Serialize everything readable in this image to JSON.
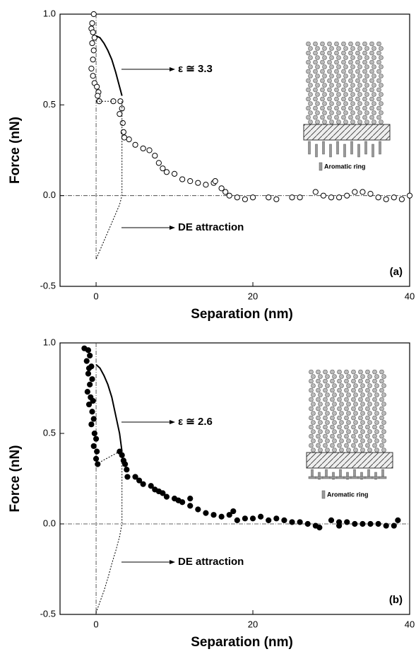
{
  "chart_data": [
    {
      "type": "scatter",
      "xlabel": "Separation (nm)",
      "ylabel": "Force (nN)",
      "xlim": [
        -4.6,
        40
      ],
      "xticks": [
        0,
        20,
        40
      ],
      "ylim": [
        -0.5,
        1.0
      ],
      "yticks": [
        -0.5,
        {
          "value": 0,
          "label": "0.0"
        },
        {
          "value": 0.5,
          "label": "0.5"
        },
        {
          "value": 1,
          "label": "1.0"
        }
      ],
      "annotations": [
        "ε ≅ 3.3",
        "DE attraction",
        "(a)",
        "Aromatic ring"
      ],
      "series": [
        {
          "marker": "open",
          "color": "#000000",
          "x": [
            -0.3,
            -0.5,
            -0.6,
            -0.4,
            -0.2,
            -0.5,
            -0.3,
            -0.4,
            -0.6,
            -0.4,
            -0.2,
            0.1,
            0.3,
            0.2,
            0.4,
            2.2,
            3.1,
            3.3,
            3.0,
            3.4,
            3.5,
            3.6,
            4.2,
            5.0,
            6.0,
            6.8,
            7.5,
            8.0,
            8.5,
            9.0,
            10.0,
            11.0,
            12.0,
            13.0,
            14.0,
            15.0,
            15.2,
            16.0,
            16.5,
            17.0,
            18.0,
            19.0,
            20.0,
            22.0,
            23.0,
            25.0,
            26.0,
            28.0,
            29.0,
            30.0,
            31.0,
            32.0,
            33.0,
            34.0,
            35.0,
            36.0,
            37.0,
            38.0,
            39.0,
            40.0
          ],
          "values": [
            1.0,
            0.95,
            0.92,
            0.9,
            0.87,
            0.84,
            0.8,
            0.75,
            0.7,
            0.66,
            0.62,
            0.6,
            0.57,
            0.55,
            0.52,
            0.52,
            0.52,
            0.48,
            0.45,
            0.4,
            0.35,
            0.32,
            0.31,
            0.28,
            0.26,
            0.25,
            0.22,
            0.18,
            0.15,
            0.13,
            0.12,
            0.09,
            0.08,
            0.07,
            0.06,
            0.07,
            0.08,
            0.04,
            0.02,
            0.0,
            -0.01,
            -0.02,
            -0.01,
            -0.01,
            -0.02,
            -0.01,
            -0.01,
            0.02,
            0.0,
            -0.01,
            -0.01,
            0.0,
            0.02,
            0.02,
            0.01,
            -0.01,
            -0.02,
            -0.01,
            -0.02,
            0.0
          ]
        },
        {
          "style": "solid",
          "color": "#000000",
          "x": [
            0,
            0.5,
            1,
            1.5,
            2,
            2.5,
            3,
            3.3
          ],
          "values": [
            0.88,
            0.87,
            0.84,
            0.8,
            0.75,
            0.68,
            0.6,
            0.55
          ]
        },
        {
          "style": "dotted",
          "color": "#000000",
          "x": [
            0,
            2.2
          ],
          "values": [
            0.52,
            0.52
          ]
        },
        {
          "style": "dotted",
          "color": "#000000",
          "x": [
            3.3,
            3.3,
            3,
            2.5,
            2,
            1.5,
            1,
            0.5,
            0
          ],
          "values": [
            0.52,
            0,
            -0.05,
            -0.1,
            -0.15,
            -0.2,
            -0.25,
            -0.3,
            -0.35
          ]
        }
      ]
    },
    {
      "type": "scatter",
      "xlabel": "Separation (nm)",
      "ylabel": "Force (nN)",
      "xlim": [
        -4.6,
        40
      ],
      "xticks": [
        0,
        20,
        40
      ],
      "ylim": [
        -0.5,
        1.0
      ],
      "yticks": [
        -0.5,
        {
          "value": 0,
          "label": "0.0"
        },
        {
          "value": 0.5,
          "label": "0.5"
        },
        {
          "value": 1,
          "label": "1.0"
        }
      ],
      "annotations": [
        "ε ≅ 2.6",
        "DE attraction",
        "(b)",
        "Aromatic ring"
      ],
      "series": [
        {
          "marker": "filled",
          "color": "#000000",
          "x": [
            -1.5,
            -1.0,
            -0.8,
            -1.2,
            -0.9,
            -0.6,
            -1.0,
            -0.5,
            -0.8,
            -1.1,
            -0.7,
            -0.4,
            -0.9,
            -0.5,
            -0.3,
            -0.6,
            -0.2,
            0.0,
            -0.3,
            0.1,
            0.0,
            0.2,
            3.0,
            3.3,
            3.5,
            3.7,
            3.9,
            4.0,
            5.0,
            5.5,
            6.0,
            7.0,
            7.5,
            8.0,
            8.5,
            9.0,
            10.0,
            10.5,
            11.0,
            12.0,
            12.0,
            13.0,
            14.0,
            15.0,
            16.0,
            17.0,
            17.5,
            18.0,
            19.0,
            20.0,
            21.0,
            22.0,
            23.0,
            24.0,
            25.0,
            26.0,
            27.0,
            28.0,
            28.5,
            30.0,
            31.0,
            31.0,
            32.0,
            33.0,
            34.0,
            35.0,
            36.0,
            37.0,
            38.0,
            38.5
          ],
          "values": [
            0.97,
            0.96,
            0.93,
            0.9,
            0.86,
            0.87,
            0.83,
            0.8,
            0.77,
            0.73,
            0.7,
            0.68,
            0.66,
            0.62,
            0.58,
            0.55,
            0.5,
            0.47,
            0.43,
            0.4,
            0.36,
            0.33,
            0.4,
            0.38,
            0.35,
            0.33,
            0.3,
            0.26,
            0.26,
            0.24,
            0.22,
            0.21,
            0.19,
            0.18,
            0.17,
            0.15,
            0.14,
            0.13,
            0.12,
            0.1,
            0.14,
            0.08,
            0.06,
            0.05,
            0.04,
            0.05,
            0.07,
            0.02,
            0.03,
            0.03,
            0.04,
            0.02,
            0.03,
            0.02,
            0.01,
            0.01,
            0.0,
            -0.01,
            -0.02,
            0.02,
            0.01,
            -0.01,
            0.01,
            0.0,
            0.0,
            0.0,
            0.0,
            -0.01,
            -0.01,
            0.02
          ]
        },
        {
          "style": "solid",
          "color": "#000000",
          "x": [
            0,
            0.5,
            1,
            1.5,
            2,
            2.5,
            3,
            3.3
          ],
          "values": [
            0.88,
            0.86,
            0.82,
            0.77,
            0.7,
            0.6,
            0.5,
            0.4
          ]
        },
        {
          "style": "dotted",
          "color": "#000000",
          "x": [
            0,
            3
          ],
          "values": [
            0.33,
            0.4
          ]
        },
        {
          "style": "dotted",
          "color": "#000000",
          "x": [
            3.3,
            3.3,
            3,
            2.5,
            2,
            1.5,
            1,
            0.5,
            0
          ],
          "values": [
            0.37,
            0,
            -0.07,
            -0.15,
            -0.22,
            -0.3,
            -0.37,
            -0.43,
            -0.49
          ]
        }
      ]
    }
  ]
}
